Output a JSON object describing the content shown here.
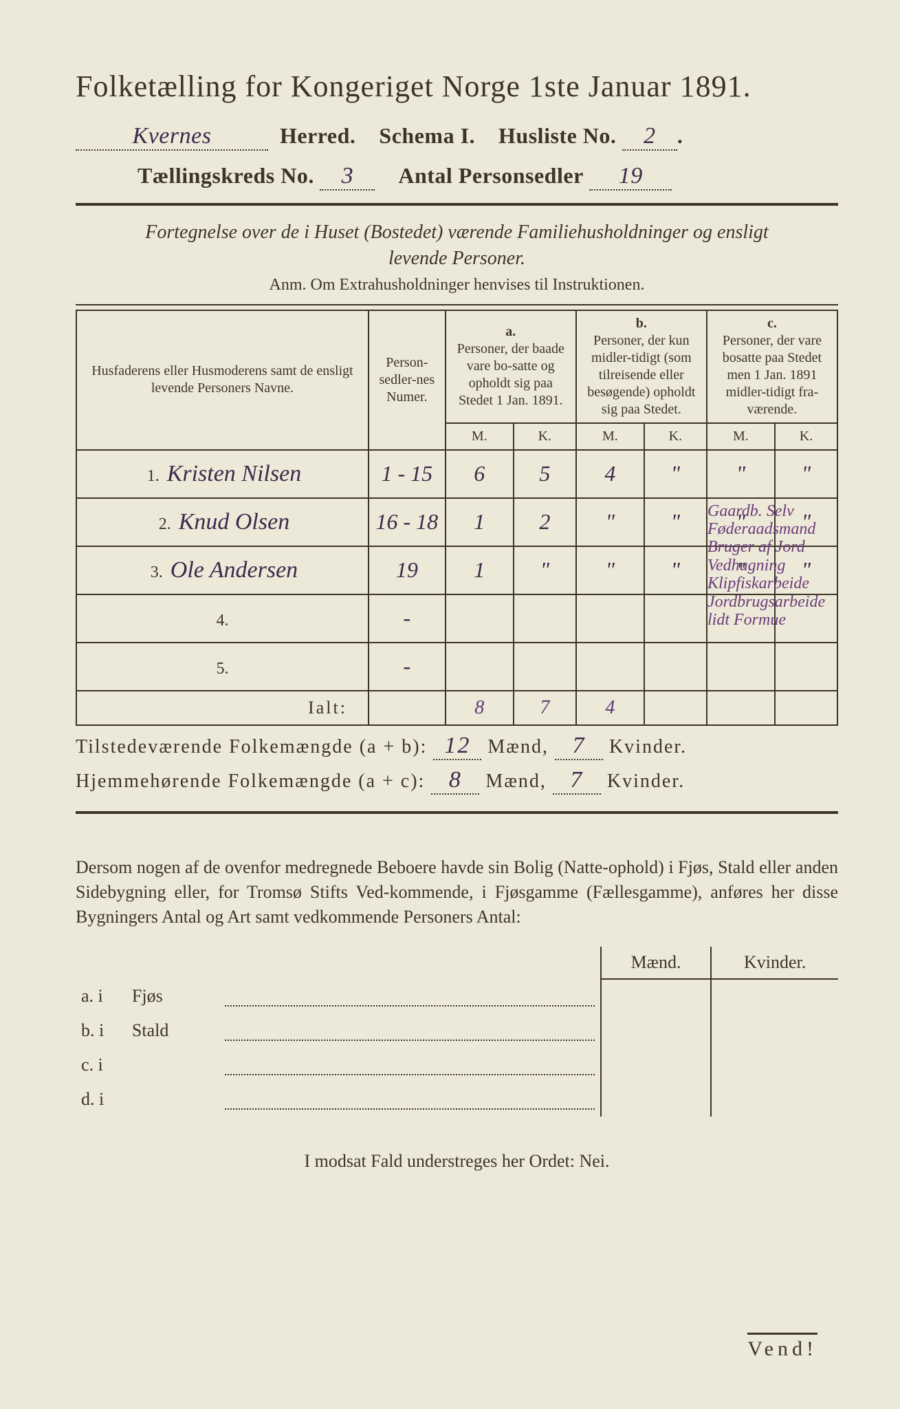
{
  "colors": {
    "paper": "#ede9d8",
    "ink": "#3b3528",
    "handwriting": "#3b2a4a",
    "purple": "#5a3a75",
    "margin_note": "#6a3a7a",
    "border": "#3a3632"
  },
  "typography": {
    "title_fontsize": 44,
    "body_fontsize": 28,
    "table_header_fontsize": 20,
    "handwriting_fontsize": 34
  },
  "header": {
    "title": "Folketælling for Kongeriget Norge 1ste Januar 1891.",
    "herred_value": "Kvernes",
    "herred_label": "Herred.",
    "schema_label": "Schema I.",
    "husliste_label": "Husliste No.",
    "husliste_value": "2",
    "kreds_label": "Tællingskreds No.",
    "kreds_value": "3",
    "antal_label": "Antal Personsedler",
    "antal_value": "19"
  },
  "subtitle": {
    "line1": "Fortegnelse over de i Huset (Bostedet) værende Familiehusholdninger og ensligt",
    "line2": "levende Personer.",
    "anm": "Anm.  Om Extrahusholdninger henvises til Instruktionen."
  },
  "table": {
    "col1": "Husfaderens eller Husmoderens samt de ensligt levende Personers Navne.",
    "col2": "Person-sedler-nes Numer.",
    "colA_top": "a.",
    "colA": "Personer, der baade vare bo-satte og opholdt sig paa Stedet 1 Jan. 1891.",
    "colB_top": "b.",
    "colB": "Personer, der kun midler-tidigt (som tilreisende eller besøgende) opholdt sig paa Stedet.",
    "colC_top": "c.",
    "colC": "Personer, der vare bosatte paa Stedet men 1 Jan. 1891 midler-tidigt fra-værende.",
    "m": "M.",
    "k": "K.",
    "rows": [
      {
        "n": "1.",
        "name": "Kristen Nilsen",
        "num": "1 - 15",
        "am": "6",
        "ak": "5",
        "bm": "4",
        "bk": "\"",
        "cm": "\"",
        "ck": "\""
      },
      {
        "n": "2.",
        "name": "Knud Olsen",
        "num": "16 - 18",
        "am": "1",
        "ak": "2",
        "bm": "\"",
        "bk": "\"",
        "cm": "\"",
        "ck": "\""
      },
      {
        "n": "3.",
        "name": "Ole Andersen",
        "num": "19",
        "am": "1",
        "ak": "\"",
        "bm": "\"",
        "bk": "\"",
        "cm": "\"",
        "ck": "\""
      },
      {
        "n": "4.",
        "name": "",
        "num": "-",
        "am": "",
        "ak": "",
        "bm": "",
        "bk": "",
        "cm": "",
        "ck": ""
      },
      {
        "n": "5.",
        "name": "",
        "num": "-",
        "am": "",
        "ak": "",
        "bm": "",
        "bk": "",
        "cm": "",
        "ck": ""
      }
    ],
    "ialt_label": "Ialt:",
    "ialt": {
      "am": "8",
      "ak": "7",
      "bm": "4",
      "bk": "",
      "cm": "",
      "ck": ""
    },
    "margin_notes": "Gaardb. Selv Føderaadsmand Bruger af Jord Vedhugning Klipfiskarbeide Jordbrugsarbeide lidt Formue"
  },
  "summary": {
    "line1_label": "Tilstedeværende Folkemængde (a + b):",
    "line1_m": "12",
    "line1_mlabel": "Mænd,",
    "line1_k": "7",
    "line1_klabel": "Kvinder.",
    "line2_label": "Hjemmehørende Folkemængde (a + c):",
    "line2_m": "8",
    "line2_mlabel": "Mænd,",
    "line2_k": "7",
    "line2_klabel": "Kvinder."
  },
  "para": "Dersom nogen af de ovenfor medregnede Beboere havde sin Bolig (Natte-ophold) i Fjøs, Stald eller anden Sidebygning eller, for Tromsø Stifts Ved-kommende, i Fjøsgamme (Fællesgamme), anføres her disse Bygningers Antal og Art samt vedkommende Personers Antal:",
  "subtable": {
    "h1": "Mænd.",
    "h2": "Kvinder.",
    "rows": [
      {
        "l": "a.  i",
        "t": "Fjøs"
      },
      {
        "l": "b.  i",
        "t": "Stald"
      },
      {
        "l": "c.  i",
        "t": ""
      },
      {
        "l": "d.  i",
        "t": ""
      }
    ]
  },
  "closing": "I modsat Fald understreges her Ordet: Nei.",
  "vend": "Vend!"
}
